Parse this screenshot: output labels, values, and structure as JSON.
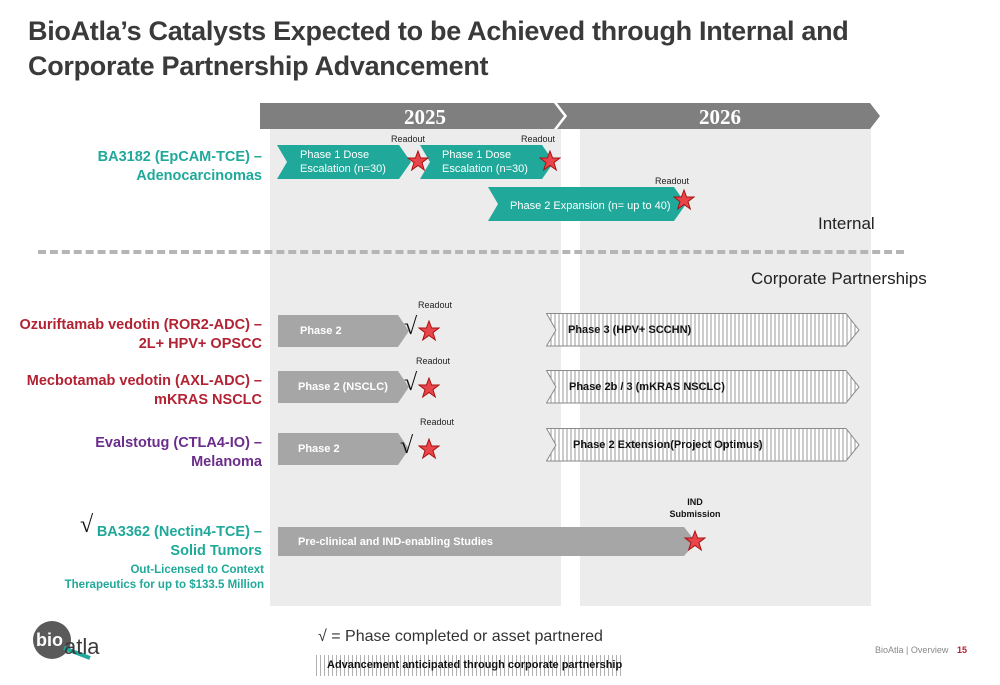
{
  "title": "BioAtla’s Catalysts Expected to be Achieved through Internal and Corporate Partnership Advancement",
  "years": [
    "2025",
    "2026"
  ],
  "sections": {
    "internal": "Internal",
    "corporate": "Corporate Partnerships"
  },
  "assets": {
    "ba3182": {
      "line1": "BA3182 (EpCAM-TCE) –",
      "line2": "Adenocarcinomas"
    },
    "ozurif": {
      "line1": "Ozuriftamab vedotin (ROR2-ADC) –",
      "line2": "2L+ HPV+ OPSCC"
    },
    "mecbo": {
      "line1": "Mecbotamab vedotin (AXL-ADC) –",
      "line2": "mKRAS NSCLC"
    },
    "evals": {
      "line1": "Evalstotug (CTLA4-IO) –",
      "line2": "Melanoma"
    },
    "ba3362": {
      "check": "√",
      "line1": "BA3362 (Nectin4-TCE) –",
      "line2": "Solid Tumors",
      "note1": "Out-Licensed to Context",
      "note2": "Therapeutics for up to $133.5 Million"
    }
  },
  "bars": {
    "ba3182_p1a": {
      "line1": "Phase 1 Dose",
      "line2": "Escalation (n=30)",
      "readout": "Readout"
    },
    "ba3182_p1b": {
      "line1": "Phase 1 Dose",
      "line2": "Escalation (n=30)",
      "readout": "Readout"
    },
    "ba3182_p2": {
      "label": "Phase 2 Expansion (n= up to 40)",
      "readout": "Readout"
    },
    "ozurif_p2": {
      "label": "Phase 2",
      "readout": "Readout",
      "check": "√"
    },
    "ozurif_p3": {
      "label": "Phase 3 (HPV+ SCCHN)"
    },
    "mecbo_p2": {
      "label": "Phase 2 (NSCLC)",
      "readout": "Readout",
      "check": "√"
    },
    "mecbo_p2b": {
      "label": "Phase 2b / 3 (mKRAS NSCLC)"
    },
    "evals_p2": {
      "label": "Phase 2",
      "readout": "Readout",
      "check": "√"
    },
    "evals_ext": {
      "label": "Phase 2 Extension(Project Optimus)"
    },
    "ba3362_pre": {
      "label": "Pre-clinical and IND-enabling Studies",
      "milestone1": "IND",
      "milestone2": "Submission"
    }
  },
  "legend": {
    "check_text": "√ = Phase completed or asset partnered",
    "hatch_text": "Advancement anticipated through corporate partnership"
  },
  "footer": {
    "logo_bio": "bio",
    "logo_atla": "atla",
    "company": "BioAtla",
    "separator": "|",
    "section": "Overview",
    "page": "15"
  },
  "colors": {
    "teal": "#20a99a",
    "red": "#b22233",
    "purple": "#6b2d8b",
    "gray_bar": "#a6a6a6",
    "year_band": "#7f7f7f",
    "star": "#e8454b"
  }
}
